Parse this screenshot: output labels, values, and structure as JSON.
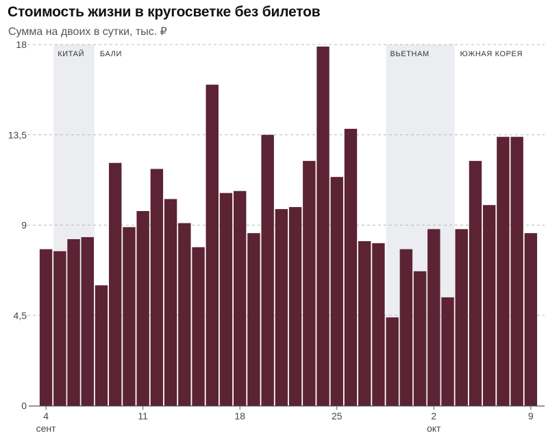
{
  "title": "Стоимость жизни в кругосветке без билетов",
  "subtitle": "Сумма на двоих в сутки, тыс. ₽",
  "chart_data": {
    "type": "bar",
    "title": "Стоимость жизни в кругосветке без билетов",
    "subtitle": "Сумма на двоих в сутки, тыс. ₽",
    "ylabel": "",
    "xlabel": "",
    "ylim": [
      0,
      18
    ],
    "y_ticks": [
      {
        "value": 0,
        "label": "0"
      },
      {
        "value": 4.5,
        "label": "4,5"
      },
      {
        "value": 9,
        "label": "9"
      },
      {
        "value": 13.5,
        "label": "13,5"
      },
      {
        "value": 18,
        "label": "18"
      }
    ],
    "x_ticks": [
      {
        "index": 0,
        "label": "4",
        "sublabel": "сент"
      },
      {
        "index": 7,
        "label": "11",
        "sublabel": ""
      },
      {
        "index": 14,
        "label": "18",
        "sublabel": ""
      },
      {
        "index": 21,
        "label": "25",
        "sublabel": ""
      },
      {
        "index": 28,
        "label": "2",
        "sublabel": "окт"
      },
      {
        "index": 35,
        "label": "9",
        "sublabel": ""
      }
    ],
    "regions": [
      {
        "label": "КИТАЙ",
        "start": 1,
        "end": 4,
        "shaded": true
      },
      {
        "label": "БАЛИ",
        "start": 4,
        "end": 25,
        "shaded": false
      },
      {
        "label": "ВЬЕТНАМ",
        "start": 25,
        "end": 30,
        "shaded": true
      },
      {
        "label": "ЮЖНАЯ КОРЕЯ",
        "start": 30,
        "end": 36,
        "shaded": false
      }
    ],
    "values": [
      7.8,
      7.7,
      8.3,
      8.4,
      6.0,
      12.1,
      8.9,
      9.7,
      11.8,
      10.3,
      9.1,
      7.9,
      16.0,
      10.6,
      10.7,
      8.6,
      13.5,
      9.8,
      9.9,
      12.2,
      17.9,
      11.4,
      13.8,
      8.2,
      8.1,
      4.4,
      7.8,
      6.7,
      8.8,
      5.4,
      8.8,
      12.2,
      10.0,
      13.4,
      13.4,
      8.6
    ],
    "colors": {
      "bar": "#5b2333",
      "shade": "#ecedf1",
      "grid": "#b8b8b8",
      "axis": "#555555"
    }
  }
}
